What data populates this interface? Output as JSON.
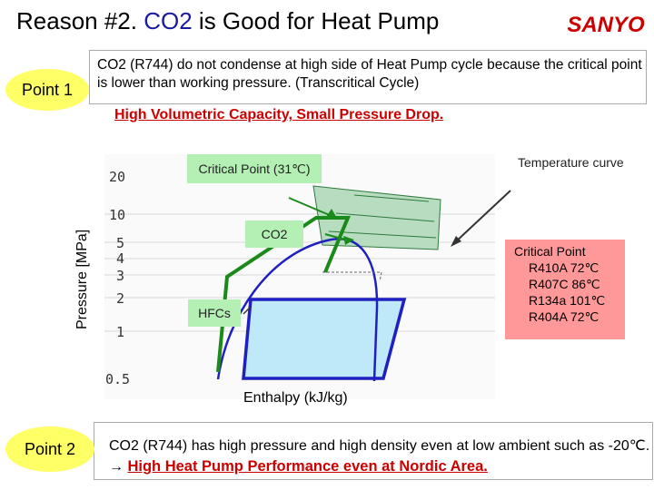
{
  "header": {
    "title_prefix": "Reason #2.",
    "title_co2": "CO2",
    "title_suffix": "is Good for Heat Pump",
    "logo_text": "SANYO"
  },
  "point1": {
    "label": "Point 1",
    "text": "CO2 (R744) do not condense at high side of Heat Pump cycle because the critical point is lower than working pressure. (Transcritical Cycle)"
  },
  "highlight1": "High Volumetric Capacity, Small Pressure Drop.",
  "diagram": {
    "y_axis_label": "Pressure  [MPa]",
    "x_axis_label": "Enthalpy (kJ/kg)",
    "y_ticks": [
      "20",
      "10",
      "5",
      "4",
      "3",
      "2",
      "1",
      "0.5"
    ],
    "critical_point_label": "Critical Point (31℃)",
    "co2_label": "CO2",
    "hfc_label": "HFCs",
    "temperature_curve_label": "Temperature curve",
    "critical_points_heading": "Critical Point",
    "critical_points": [
      "R410A 72℃",
      "R407C 86℃",
      "R134a 101℃",
      "R404A 72℃"
    ],
    "colors": {
      "co2_cycle": "#1a8a1a",
      "hfc_cycle": "#2020c0",
      "label_bg": "#b4f0b4",
      "critical_bg": "#ff9999",
      "hfc_fill": "#bfe8f8",
      "co2_fill": "#b8dcc0"
    }
  },
  "point2": {
    "label": "Point 2",
    "text": "CO2 (R744) has high pressure and high density even at low ambient such as -20℃.",
    "arrow": "→",
    "highlight": "High Heat Pump Performance even at Nordic Area."
  }
}
